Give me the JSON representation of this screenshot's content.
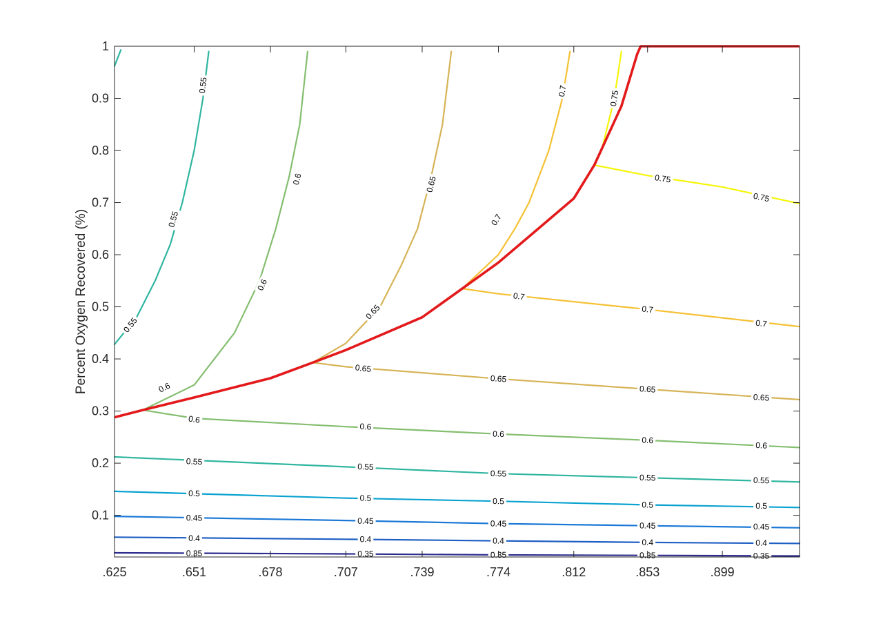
{
  "chart_data": {
    "type": "contour",
    "title": "",
    "xlabel": "",
    "ylabel": "Percent Oxygen Recovered (%)",
    "grid": false,
    "x_tick_labels": [
      ".625",
      ".651",
      ".678",
      ".707",
      ".739",
      ".774",
      ".812",
      ".853",
      ".899"
    ],
    "x_ticks": [
      0.625,
      0.651,
      0.678,
      0.707,
      0.739,
      0.774,
      0.812,
      0.853,
      0.899
    ],
    "x_axis_spacing": "reciprocal (ticks evenly spaced in 1/x)",
    "xlim": [
      0.625,
      0.952
    ],
    "ylim": [
      0.02,
      1.0
    ],
    "y_ticks": [
      0.1,
      0.2,
      0.3,
      0.4,
      0.5,
      0.6,
      0.7,
      0.8,
      0.9,
      1.0
    ],
    "y_tick_labels": [
      "0.1",
      "0.2",
      "0.3",
      "0.4",
      "0.5",
      "0.6",
      "0.7",
      "0.8",
      "0.9",
      "1"
    ],
    "boundary_curve": {
      "color": "#e31a1c",
      "points": [
        [
          0.625,
          0.288
        ],
        [
          0.634,
          0.302
        ],
        [
          0.651,
          0.326
        ],
        [
          0.678,
          0.363
        ],
        [
          0.694,
          0.393
        ],
        [
          0.707,
          0.417
        ],
        [
          0.739,
          0.48
        ],
        [
          0.757,
          0.535
        ],
        [
          0.774,
          0.585
        ],
        [
          0.812,
          0.708
        ],
        [
          0.823,
          0.772
        ],
        [
          0.838,
          0.885
        ],
        [
          0.847,
          0.985
        ],
        [
          0.849,
          1.0
        ],
        [
          0.952,
          1.0
        ]
      ]
    },
    "contours": [
      {
        "level": "0.35",
        "color": "#2e2d8f",
        "segments": [
          [
            [
              0.625,
              0.028
            ],
            [
              0.707,
              0.026
            ],
            [
              0.774,
              0.024
            ],
            [
              0.853,
              0.023
            ],
            [
              0.952,
              0.022
            ]
          ]
        ],
        "labels": [
          [
            0.651,
            0.027
          ],
          [
            0.715,
            0.026
          ],
          [
            0.774,
            0.024
          ],
          [
            0.853,
            0.023
          ],
          [
            0.925,
            0.022
          ]
        ]
      },
      {
        "level": "0.4",
        "color": "#1f5fc4",
        "segments": [
          [
            [
              0.625,
              0.058
            ],
            [
              0.707,
              0.054
            ],
            [
              0.774,
              0.051
            ],
            [
              0.853,
              0.048
            ],
            [
              0.952,
              0.046
            ]
          ]
        ],
        "labels": [
          [
            0.651,
            0.056
          ],
          [
            0.715,
            0.054
          ],
          [
            0.774,
            0.051
          ],
          [
            0.853,
            0.048
          ],
          [
            0.925,
            0.047
          ]
        ]
      },
      {
        "level": "0.45",
        "color": "#1a78d6",
        "segments": [
          [
            [
              0.625,
              0.098
            ],
            [
              0.707,
              0.09
            ],
            [
              0.774,
              0.084
            ],
            [
              0.853,
              0.08
            ],
            [
              0.952,
              0.076
            ]
          ]
        ],
        "labels": [
          [
            0.651,
            0.095
          ],
          [
            0.715,
            0.089
          ],
          [
            0.774,
            0.084
          ],
          [
            0.853,
            0.08
          ],
          [
            0.925,
            0.078
          ]
        ]
      },
      {
        "level": "0.5",
        "color": "#0aa2d0",
        "segments": [
          [
            [
              0.625,
              0.146
            ],
            [
              0.707,
              0.133
            ],
            [
              0.774,
              0.127
            ],
            [
              0.853,
              0.12
            ],
            [
              0.952,
              0.115
            ]
          ]
        ],
        "labels": [
          [
            0.651,
            0.142
          ],
          [
            0.715,
            0.133
          ],
          [
            0.774,
            0.127
          ],
          [
            0.853,
            0.12
          ],
          [
            0.925,
            0.118
          ]
        ]
      },
      {
        "level": "0.55",
        "color": "#2fb5a0",
        "segments": [
          [
            [
              0.625,
              0.212
            ],
            [
              0.707,
              0.193
            ],
            [
              0.774,
              0.18
            ],
            [
              0.853,
              0.172
            ],
            [
              0.952,
              0.164
            ]
          ],
          [
            [
              0.625,
              0.428
            ],
            [
              0.632,
              0.48
            ],
            [
              0.638,
              0.55
            ],
            [
              0.643,
              0.62
            ],
            [
              0.647,
              0.7
            ],
            [
              0.651,
              0.8
            ],
            [
              0.654,
              0.9
            ],
            [
              0.656,
              0.99
            ]
          ],
          [
            [
              0.625,
              0.962
            ],
            [
              0.627,
              0.993
            ]
          ]
        ],
        "labels": [
          [
            0.651,
            0.203
          ],
          [
            0.715,
            0.193
          ],
          [
            0.774,
            0.18
          ],
          [
            0.853,
            0.172
          ],
          [
            0.925,
            0.167
          ],
          [
            0.63,
            0.465
          ],
          [
            0.644,
            0.668
          ],
          [
            0.654,
            0.925
          ]
        ]
      },
      {
        "level": "0.6",
        "color": "#84be6f",
        "segments": [
          [
            [
              0.634,
              0.302
            ],
            [
              0.651,
              0.286
            ],
            [
              0.707,
              0.27
            ],
            [
              0.774,
              0.256
            ],
            [
              0.853,
              0.244
            ],
            [
              0.952,
              0.23
            ]
          ],
          [
            [
              0.634,
              0.302
            ],
            [
              0.651,
              0.35
            ],
            [
              0.665,
              0.45
            ],
            [
              0.674,
              0.55
            ],
            [
              0.68,
              0.65
            ],
            [
              0.685,
              0.75
            ],
            [
              0.689,
              0.85
            ],
            [
              0.692,
              0.99
            ]
          ]
        ],
        "labels": [
          [
            0.651,
            0.284
          ],
          [
            0.715,
            0.27
          ],
          [
            0.774,
            0.256
          ],
          [
            0.853,
            0.244
          ],
          [
            0.925,
            0.234
          ],
          [
            0.641,
            0.345
          ],
          [
            0.675,
            0.542
          ],
          [
            0.688,
            0.745
          ]
        ]
      },
      {
        "level": "0.65",
        "color": "#d6b356",
        "segments": [
          [
            [
              0.694,
              0.393
            ],
            [
              0.707,
              0.385
            ],
            [
              0.774,
              0.362
            ],
            [
              0.853,
              0.342
            ],
            [
              0.952,
              0.322
            ]
          ],
          [
            [
              0.694,
              0.393
            ],
            [
              0.707,
              0.43
            ],
            [
              0.721,
              0.5
            ],
            [
              0.73,
              0.58
            ],
            [
              0.737,
              0.65
            ],
            [
              0.743,
              0.75
            ],
            [
              0.748,
              0.85
            ],
            [
              0.752,
              0.99
            ]
          ]
        ],
        "labels": [
          [
            0.714,
            0.382
          ],
          [
            0.774,
            0.362
          ],
          [
            0.853,
            0.342
          ],
          [
            0.925,
            0.326
          ],
          [
            0.718,
            0.49
          ],
          [
            0.743,
            0.735
          ]
        ]
      },
      {
        "level": "0.7",
        "color": "#f5c032",
        "segments": [
          [
            [
              0.757,
              0.535
            ],
            [
              0.774,
              0.525
            ],
            [
              0.853,
              0.495
            ],
            [
              0.952,
              0.462
            ]
          ],
          [
            [
              0.757,
              0.535
            ],
            [
              0.774,
              0.6
            ],
            [
              0.782,
              0.65
            ],
            [
              0.789,
              0.7
            ],
            [
              0.799,
              0.8
            ],
            [
              0.806,
              0.9
            ],
            [
              0.81,
              0.99
            ]
          ]
        ],
        "labels": [
          [
            0.784,
            0.52
          ],
          [
            0.853,
            0.495
          ],
          [
            0.925,
            0.468
          ],
          [
            0.773,
            0.667
          ],
          [
            0.806,
            0.914
          ]
        ]
      },
      {
        "level": "0.75",
        "color": "#f5f50a",
        "segments": [
          [
            [
              0.823,
              0.772
            ],
            [
              0.853,
              0.752
            ],
            [
              0.899,
              0.73
            ],
            [
              0.952,
              0.698
            ]
          ],
          [
            [
              0.823,
              0.772
            ],
            [
              0.827,
              0.8
            ],
            [
              0.834,
              0.9
            ],
            [
              0.838,
              0.99
            ]
          ]
        ],
        "labels": [
          [
            0.862,
            0.746
          ],
          [
            0.925,
            0.71
          ],
          [
            0.834,
            0.9
          ]
        ]
      }
    ]
  }
}
